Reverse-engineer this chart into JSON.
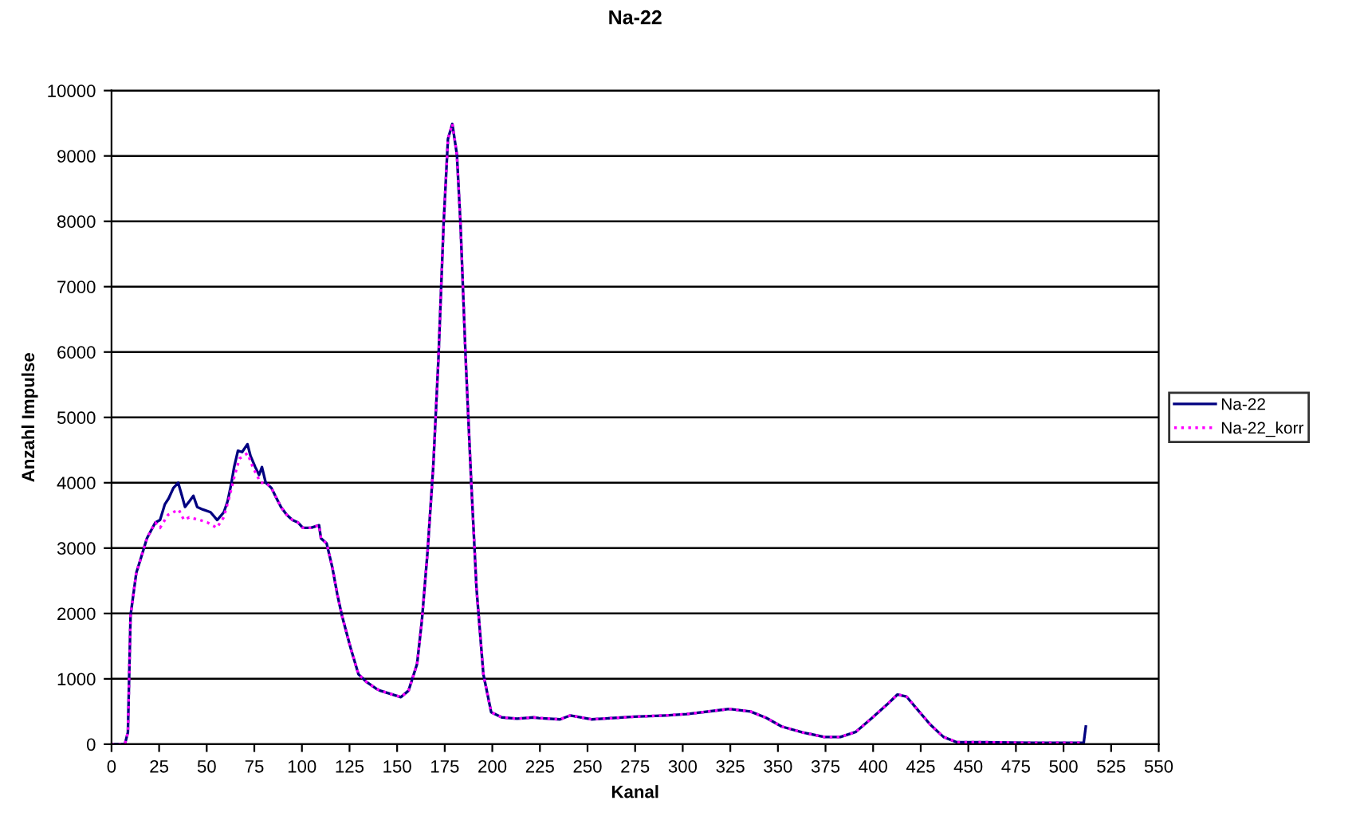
{
  "chart_data": {
    "type": "line",
    "title": "Na-22",
    "xlabel": "Kanal",
    "ylabel": "Anzahl Impulse",
    "xlim": [
      0,
      550
    ],
    "xticks": [
      0,
      25,
      50,
      75,
      100,
      125,
      150,
      175,
      200,
      225,
      250,
      275,
      300,
      325,
      350,
      375,
      400,
      425,
      450,
      475,
      500,
      525,
      550
    ],
    "ylim": [
      0,
      10000
    ],
    "yticks": [
      0,
      1000,
      2000,
      3000,
      4000,
      5000,
      6000,
      7000,
      8000,
      9000,
      10000
    ],
    "grid": "y",
    "legend": "right",
    "marker": "none",
    "series": [
      {
        "name": "Na-22",
        "color": "#000080",
        "line_style": "solid",
        "x": [
          0,
          7,
          8.6,
          10,
          13,
          16,
          18.6,
          23,
          25.5,
          28,
          30,
          32.5,
          35,
          37,
          38.6,
          41,
          43,
          45,
          48,
          52,
          55.5,
          59,
          61,
          63,
          64.4,
          66.4,
          68.6,
          71.4,
          73,
          75.5,
          77.5,
          79,
          81,
          84,
          86.7,
          89,
          92,
          95,
          98,
          100.5,
          104.7,
          109,
          110,
          113,
          116,
          118.6,
          121,
          125.5,
          129.7,
          134,
          139,
          141,
          152,
          156,
          160.5,
          163,
          166,
          169,
          171.7,
          174.4,
          176.7,
          179,
          181.4,
          183.3,
          186,
          188.9,
          191.7,
          195.3,
          199.4,
          205,
          213,
          221.7,
          224.4,
          235.6,
          241,
          252,
          274.4,
          291,
          302,
          319,
          324.4,
          335.6,
          344,
          352,
          363,
          374.4,
          382.8,
          391,
          399.4,
          407.8,
          412.8,
          417.5,
          423,
          430,
          437,
          444,
          458,
          485.6,
          510.6,
          511.7
        ],
        "values": [
          0,
          0,
          180,
          1970,
          2620,
          2900,
          3150,
          3390,
          3430,
          3670,
          3760,
          3920,
          4000,
          3800,
          3630,
          3720,
          3800,
          3630,
          3590,
          3550,
          3430,
          3550,
          3720,
          4000,
          4240,
          4490,
          4470,
          4590,
          4410,
          4240,
          4120,
          4240,
          4000,
          3920,
          3760,
          3630,
          3510,
          3430,
          3390,
          3310,
          3310,
          3350,
          3150,
          3070,
          2700,
          2290,
          1970,
          1480,
          1070,
          950,
          850,
          820,
          720,
          820,
          1230,
          1890,
          2950,
          4260,
          5900,
          7950,
          9260,
          9490,
          9020,
          7950,
          5900,
          4020,
          2380,
          1070,
          490,
          410,
          390,
          410,
          400,
          380,
          440,
          380,
          420,
          440,
          460,
          520,
          540,
          500,
          400,
          270,
          180,
          110,
          110,
          190,
          400,
          620,
          760,
          730,
          540,
          300,
          110,
          30,
          30,
          20,
          20,
          270
        ]
      },
      {
        "name": "Na-22_korr",
        "color": "#ff00ff",
        "line_style": "dotted",
        "x": [
          0,
          7,
          8.6,
          10,
          13,
          16,
          18.6,
          23,
          25.5,
          29.7,
          32.5,
          35.3,
          38,
          40.8,
          46.4,
          50.5,
          55.3,
          58.9,
          61.7,
          64.4,
          67.2,
          71.4,
          74.2,
          78.3,
          81,
          84,
          86.7,
          89,
          92,
          95,
          98,
          100.5,
          104.7,
          109,
          110,
          113,
          116,
          118.6,
          121,
          125.5,
          129.7,
          134,
          139,
          141,
          152,
          156,
          160.5,
          163,
          166,
          169,
          171.7,
          174.4,
          176.7,
          179,
          181.4,
          183.3,
          186,
          188.9,
          191.7,
          195.3,
          199.4,
          205,
          213,
          221.7,
          224.4,
          235.6,
          241,
          252,
          274.4,
          291,
          302,
          319,
          324.4,
          335.6,
          344,
          352,
          363,
          374.4,
          382.8,
          391,
          399.4,
          407.8,
          412.8,
          417.5,
          423,
          430,
          437,
          444,
          458,
          485.6,
          510.6
        ],
        "values": [
          0,
          0,
          180,
          1970,
          2620,
          2900,
          3150,
          3390,
          3310,
          3510,
          3550,
          3590,
          3430,
          3470,
          3430,
          3390,
          3310,
          3470,
          3760,
          4080,
          4370,
          4450,
          4240,
          4000,
          4000,
          3920,
          3760,
          3630,
          3510,
          3430,
          3390,
          3310,
          3310,
          3350,
          3150,
          3070,
          2700,
          2290,
          1970,
          1480,
          1070,
          950,
          850,
          820,
          720,
          820,
          1230,
          1890,
          2950,
          4260,
          5900,
          7950,
          9260,
          9490,
          9020,
          7950,
          5900,
          4020,
          2380,
          1070,
          490,
          410,
          390,
          410,
          400,
          380,
          440,
          380,
          420,
          440,
          460,
          520,
          540,
          500,
          400,
          270,
          180,
          110,
          110,
          190,
          400,
          620,
          760,
          730,
          540,
          300,
          110,
          30,
          30,
          20,
          20
        ]
      }
    ]
  }
}
